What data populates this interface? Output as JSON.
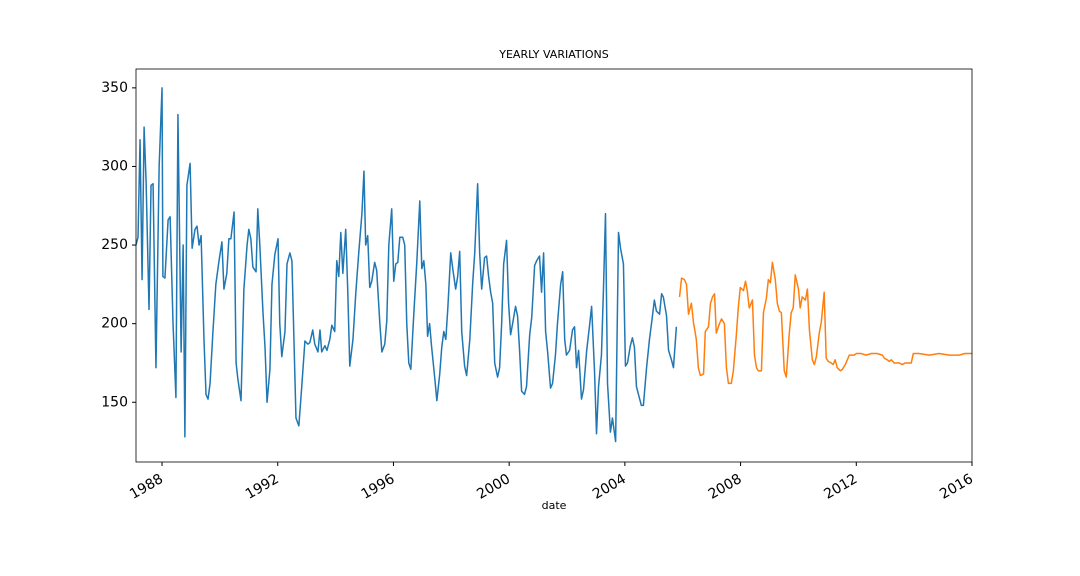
{
  "chart_data": {
    "type": "line",
    "title": "YEARLY VARIATIONS",
    "xlabel": "date",
    "xlim": [
      1987.1,
      2016
    ],
    "xticks": [
      1988,
      1992,
      1996,
      2000,
      2004,
      2008,
      2012,
      2016
    ],
    "ylim": [
      112,
      362
    ],
    "yticks": [
      150,
      200,
      250,
      300,
      350
    ],
    "grid": false,
    "series": [
      {
        "color": "#1f77b4",
        "x": [
          1987.1,
          1987.17,
          1987.24,
          1987.31,
          1987.38,
          1987.45,
          1987.55,
          1987.62,
          1987.69,
          1987.79,
          1987.9,
          1988.0,
          1988.03,
          1988.1,
          1988.21,
          1988.28,
          1988.38,
          1988.48,
          1988.55,
          1988.66,
          1988.73,
          1988.79,
          1988.86,
          1988.97,
          1989.04,
          1989.14,
          1989.21,
          1989.28,
          1989.35,
          1989.45,
          1989.52,
          1989.59,
          1989.66,
          1989.76,
          1989.86,
          1989.97,
          1990.07,
          1990.14,
          1990.24,
          1990.31,
          1990.38,
          1990.49,
          1990.56,
          1990.62,
          1990.73,
          1990.83,
          1990.94,
          1991.0,
          1991.07,
          1991.14,
          1991.25,
          1991.31,
          1991.38,
          1991.49,
          1991.56,
          1991.63,
          1991.73,
          1991.8,
          1991.9,
          1992.01,
          1992.07,
          1992.14,
          1992.25,
          1992.32,
          1992.42,
          1992.49,
          1992.56,
          1992.63,
          1992.73,
          1992.83,
          1992.94,
          1993.04,
          1993.11,
          1993.21,
          1993.28,
          1993.39,
          1993.46,
          1993.52,
          1993.63,
          1993.7,
          1993.8,
          1993.87,
          1993.97,
          1994.04,
          1994.11,
          1994.18,
          1994.25,
          1994.35,
          1994.42,
          1994.49,
          1994.6,
          1994.7,
          1994.8,
          1994.91,
          1994.98,
          1995.04,
          1995.11,
          1995.18,
          1995.25,
          1995.35,
          1995.42,
          1995.53,
          1995.6,
          1995.7,
          1995.77,
          1995.84,
          1995.94,
          1996.01,
          1996.08,
          1996.15,
          1996.22,
          1996.32,
          1996.39,
          1996.46,
          1996.53,
          1996.6,
          1996.7,
          1996.81,
          1996.91,
          1996.98,
          1997.05,
          1997.12,
          1997.18,
          1997.25,
          1997.32,
          1997.43,
          1997.5,
          1997.6,
          1997.67,
          1997.74,
          1997.81,
          1997.88,
          1997.98,
          1998.05,
          1998.15,
          1998.22,
          1998.29,
          1998.36,
          1998.46,
          1998.53,
          1998.64,
          1998.74,
          1998.81,
          1998.91,
          1998.98,
          1999.05,
          1999.15,
          1999.22,
          1999.29,
          1999.36,
          1999.43,
          1999.5,
          1999.6,
          1999.67,
          1999.74,
          1999.81,
          1999.91,
          1999.98,
          2000.05,
          2000.12,
          2000.22,
          2000.29,
          2000.36,
          2000.43,
          2000.53,
          2000.6,
          2000.71,
          2000.78,
          2000.88,
          2000.95,
          2001.05,
          2001.12,
          2001.19,
          2001.26,
          2001.33,
          2001.43,
          2001.5,
          2001.6,
          2001.67,
          2001.78,
          2001.85,
          2001.92,
          2001.98,
          2002.09,
          2002.19,
          2002.26,
          2002.33,
          2002.4,
          2002.5,
          2002.57,
          2002.68,
          2002.78,
          2002.85,
          2002.95,
          2003.02,
          2003.09,
          2003.19,
          2003.26,
          2003.33,
          2003.4,
          2003.5,
          2003.57,
          2003.68,
          2003.78,
          2003.85,
          2003.95,
          2004.02,
          2004.09,
          2004.19,
          2004.26,
          2004.33,
          2004.4,
          2004.47,
          2004.57,
          2004.64,
          2004.75,
          2004.85,
          2004.92,
          2005.02,
          2005.09,
          2005.2,
          2005.27,
          2005.33,
          2005.44,
          2005.51,
          2005.61,
          2005.68,
          2005.78
        ],
        "values": [
          250,
          255,
          317,
          228,
          325,
          290,
          209,
          288,
          289,
          172,
          300,
          350,
          230,
          229,
          266,
          268,
          200,
          153,
          333,
          182,
          250,
          128,
          288,
          302,
          248,
          260,
          262,
          250,
          256,
          190,
          155,
          152,
          162,
          195,
          225,
          240,
          252,
          222,
          232,
          254,
          254,
          271,
          175,
          165,
          151,
          222,
          250,
          260,
          254,
          236,
          233,
          273,
          250,
          207,
          185,
          150,
          171,
          225,
          244,
          254,
          200,
          179,
          195,
          238,
          245,
          240,
          190,
          140,
          135,
          160,
          189,
          187,
          188,
          196,
          187,
          182,
          196,
          182,
          186,
          183,
          190,
          199,
          195,
          240,
          230,
          258,
          232,
          260,
          221,
          173,
          190,
          220,
          245,
          270,
          297,
          250,
          256,
          223,
          227,
          239,
          234,
          200,
          182,
          187,
          202,
          250,
          273,
          227,
          238,
          239,
          255,
          255,
          250,
          200,
          175,
          171,
          205,
          240,
          278,
          235,
          240,
          225,
          192,
          200,
          185,
          165,
          151,
          168,
          185,
          195,
          190,
          210,
          245,
          235,
          222,
          230,
          246,
          195,
          173,
          167,
          190,
          226,
          245,
          289,
          245,
          222,
          242,
          243,
          230,
          220,
          213,
          175,
          166,
          172,
          200,
          238,
          253,
          213,
          193,
          200,
          211,
          205,
          183,
          157,
          155,
          160,
          193,
          204,
          237,
          240,
          243,
          220,
          245,
          195,
          182,
          159,
          162,
          180,
          200,
          225,
          233,
          190,
          180,
          183,
          196,
          198,
          172,
          183,
          152,
          158,
          183,
          199,
          211,
          170,
          130,
          160,
          180,
          222,
          270,
          162,
          131,
          140,
          125,
          258,
          248,
          238,
          173,
          175,
          186,
          191,
          185,
          160,
          155,
          148,
          148,
          172,
          190,
          200,
          215,
          208,
          206,
          219,
          217,
          205,
          183,
          177,
          172,
          198
        ]
      },
      {
        "color": "#ff7f0e",
        "x": [
          2005.89,
          2005.96,
          2006.06,
          2006.13,
          2006.2,
          2006.3,
          2006.37,
          2006.47,
          2006.54,
          2006.61,
          2006.72,
          2006.78,
          2006.89,
          2006.96,
          2007.03,
          2007.1,
          2007.16,
          2007.27,
          2007.34,
          2007.44,
          2007.51,
          2007.58,
          2007.68,
          2007.75,
          2007.85,
          2007.92,
          2007.99,
          2008.1,
          2008.17,
          2008.23,
          2008.3,
          2008.41,
          2008.48,
          2008.55,
          2008.61,
          2008.72,
          2008.79,
          2008.89,
          2008.96,
          2009.03,
          2009.1,
          2009.2,
          2009.27,
          2009.34,
          2009.41,
          2009.51,
          2009.58,
          2009.68,
          2009.75,
          2009.82,
          2009.89,
          2010.0,
          2010.06,
          2010.13,
          2010.24,
          2010.31,
          2010.38,
          2010.48,
          2010.55,
          2010.62,
          2010.72,
          2010.79,
          2010.89,
          2010.96,
          2011.03,
          2011.13,
          2011.2,
          2011.27,
          2011.34,
          2011.45,
          2011.52,
          2011.62,
          2011.69,
          2011.76,
          2011.86,
          2011.93,
          2012.0,
          2012.17,
          2012.34,
          2012.52,
          2012.72,
          2012.9,
          2012.97,
          2013.07,
          2013.14,
          2013.21,
          2013.31,
          2013.38,
          2013.48,
          2013.59,
          2013.69,
          2013.79,
          2013.9,
          2013.97,
          2014.17,
          2014.52,
          2014.86,
          2015.21,
          2015.55,
          2015.76,
          2016.0
        ],
        "values": [
          217,
          229,
          228,
          225,
          206,
          213,
          201,
          190,
          172,
          167,
          168,
          195,
          198,
          213,
          217,
          219,
          194,
          200,
          203,
          200,
          172,
          162,
          162,
          170,
          192,
          210,
          223,
          221,
          227,
          221,
          210,
          215,
          180,
          172,
          170,
          170,
          207,
          216,
          228,
          226,
          239,
          228,
          213,
          208,
          207,
          170,
          166,
          193,
          207,
          210,
          231,
          222,
          210,
          217,
          215,
          222,
          196,
          177,
          174,
          179,
          194,
          201,
          220,
          178,
          176,
          175,
          174,
          177,
          172,
          170,
          171,
          174,
          177,
          180,
          180,
          180,
          181,
          181,
          180,
          181,
          181,
          180,
          178,
          177,
          176,
          177,
          175,
          175,
          175,
          174,
          175,
          175,
          175,
          181,
          181,
          180,
          181,
          180,
          180,
          181,
          181
        ]
      }
    ]
  }
}
